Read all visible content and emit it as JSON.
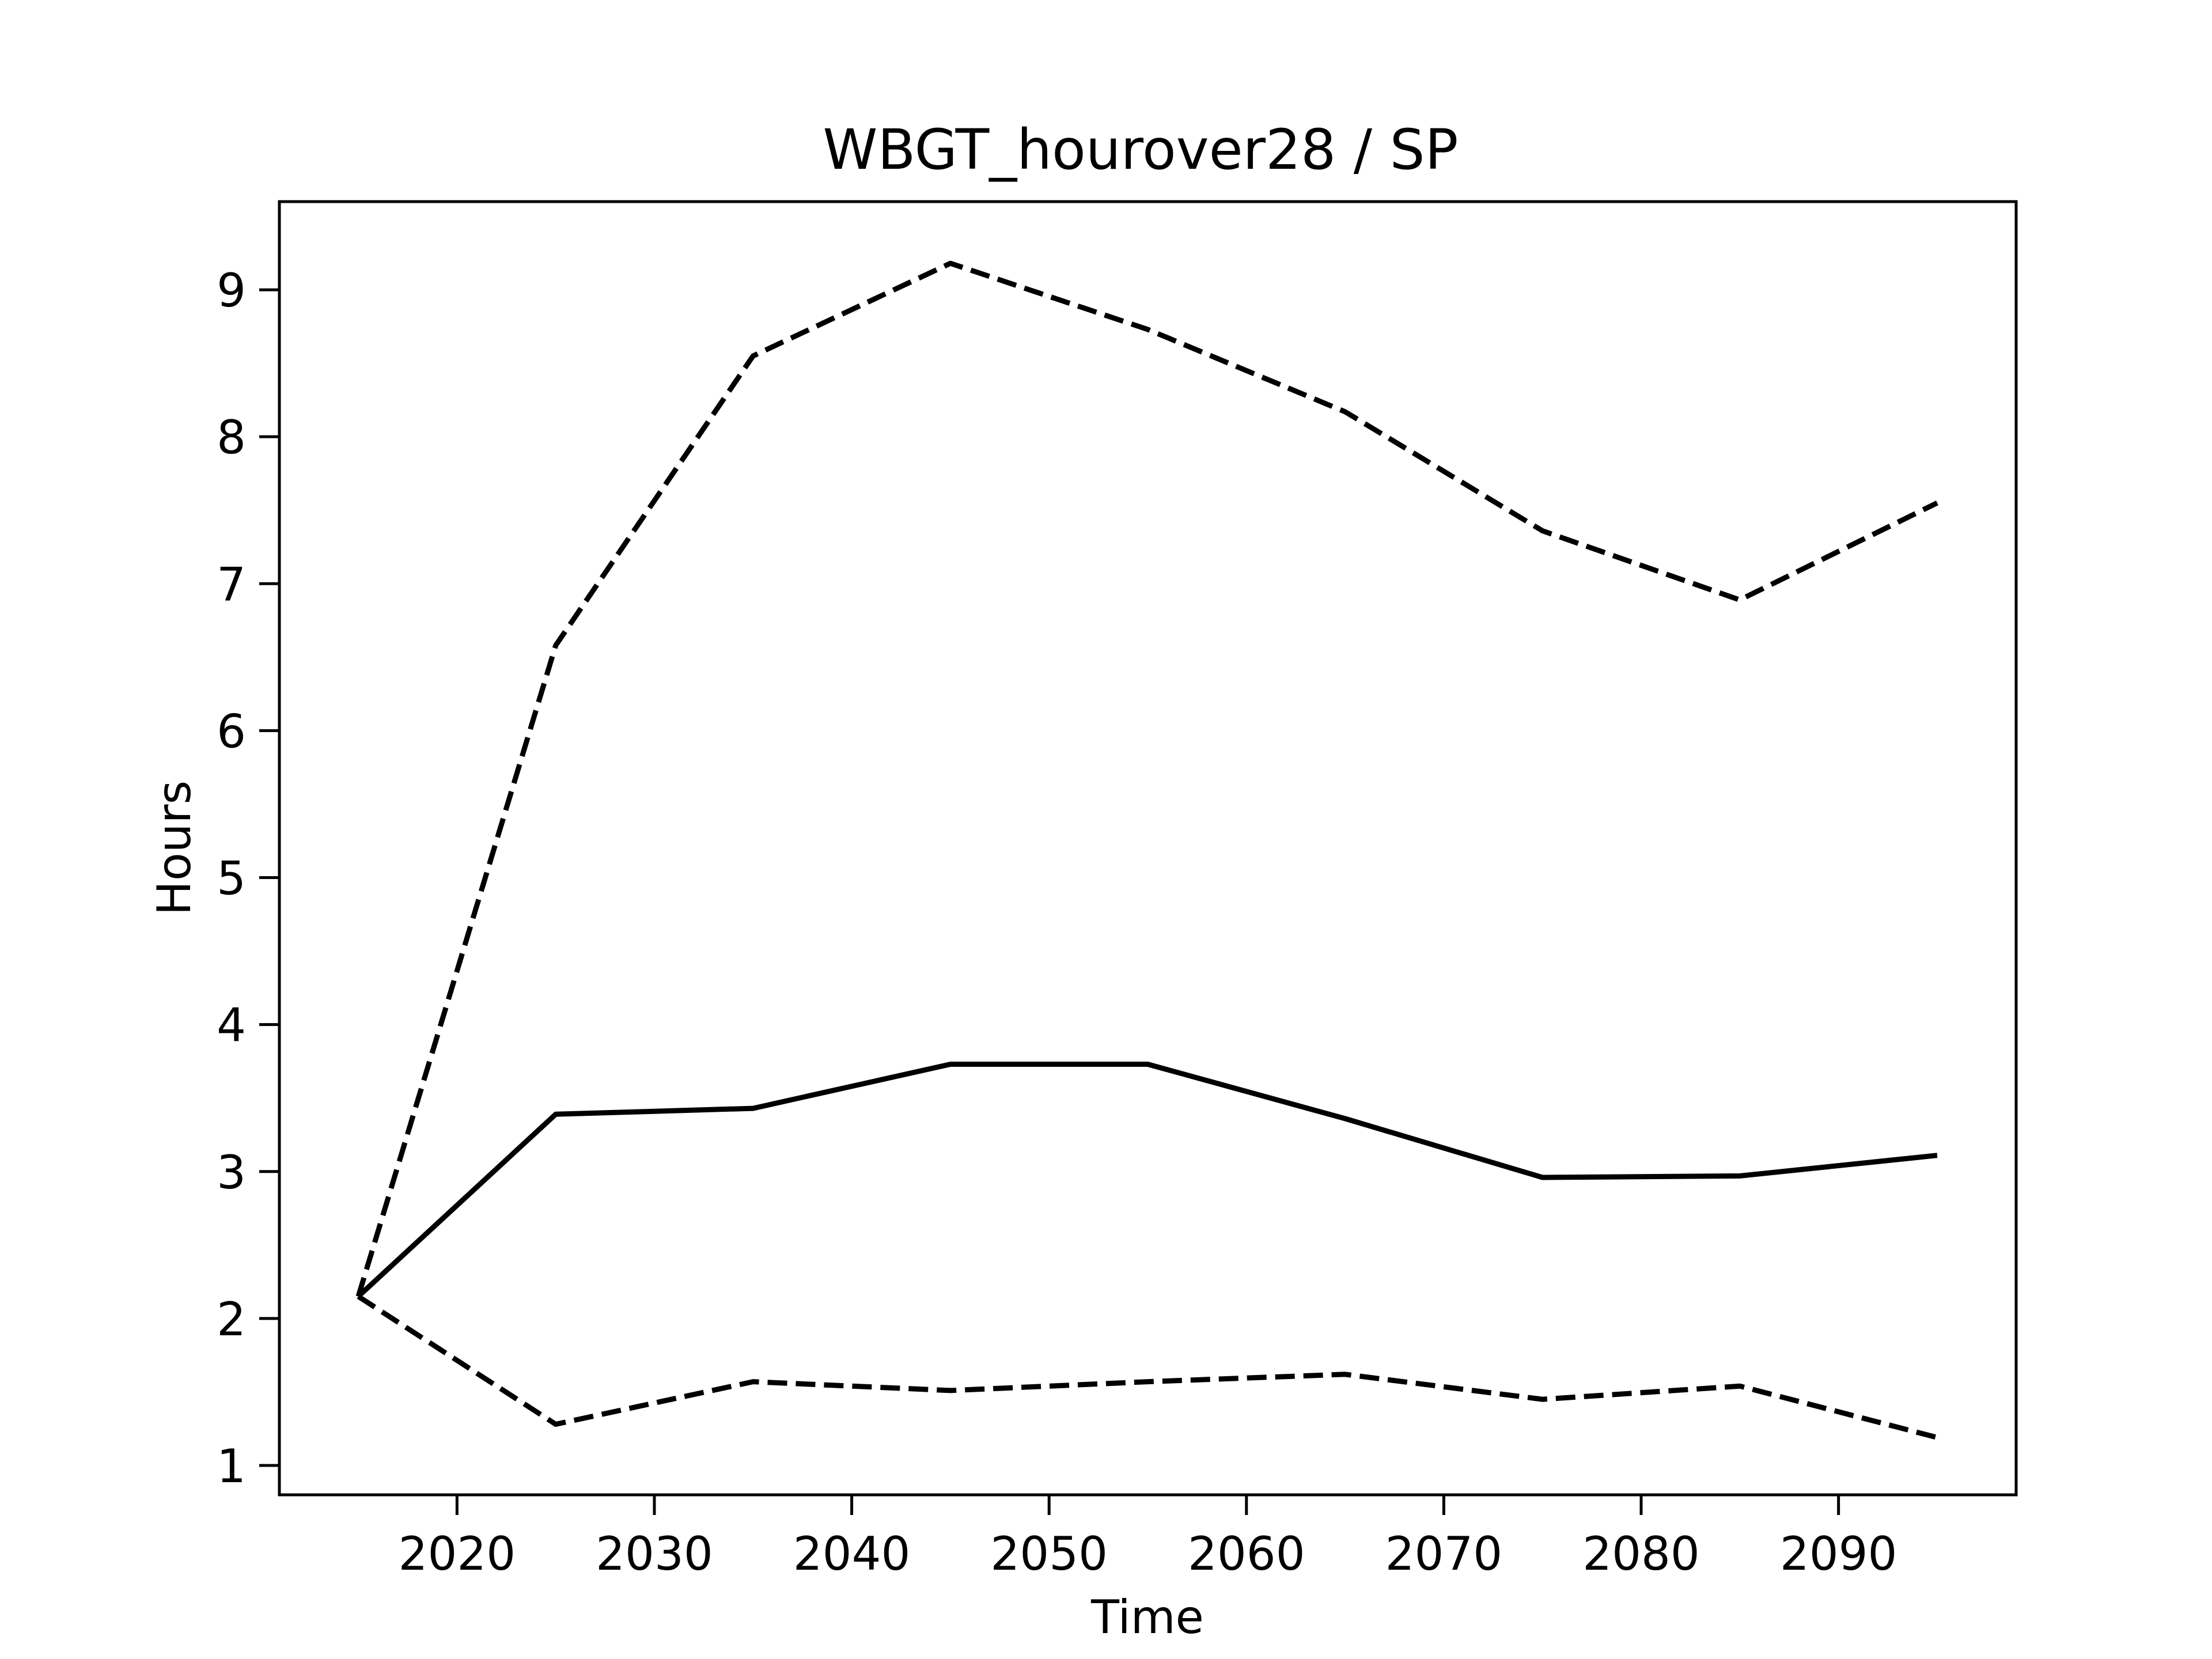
{
  "chart_data": {
    "type": "line",
    "title": "WBGT_hourover28 / SP",
    "xlabel": "Time",
    "ylabel": "Hours",
    "xlim": [
      2011,
      2099
    ],
    "ylim": [
      0.8,
      9.6
    ],
    "xticks": [
      2020,
      2030,
      2040,
      2050,
      2060,
      2070,
      2080,
      2090
    ],
    "yticks": [
      1,
      2,
      3,
      4,
      5,
      6,
      7,
      8,
      9
    ],
    "grid": false,
    "x": [
      2015,
      2025,
      2035,
      2045,
      2055,
      2065,
      2075,
      2085,
      2095
    ],
    "series": [
      {
        "style": "solid",
        "values": [
          2.15,
          3.39,
          3.43,
          3.73,
          3.73,
          3.36,
          2.96,
          2.97,
          3.11
        ]
      },
      {
        "style": "dashed",
        "values": [
          2.15,
          6.58,
          8.55,
          9.18,
          8.73,
          8.17,
          7.36,
          6.89,
          7.55
        ]
      },
      {
        "style": "dashed",
        "values": [
          2.15,
          1.28,
          1.57,
          1.51,
          1.57,
          1.62,
          1.45,
          1.54,
          1.19
        ]
      }
    ],
    "colors": {
      "line": "#000000",
      "background": "#ffffff"
    }
  }
}
